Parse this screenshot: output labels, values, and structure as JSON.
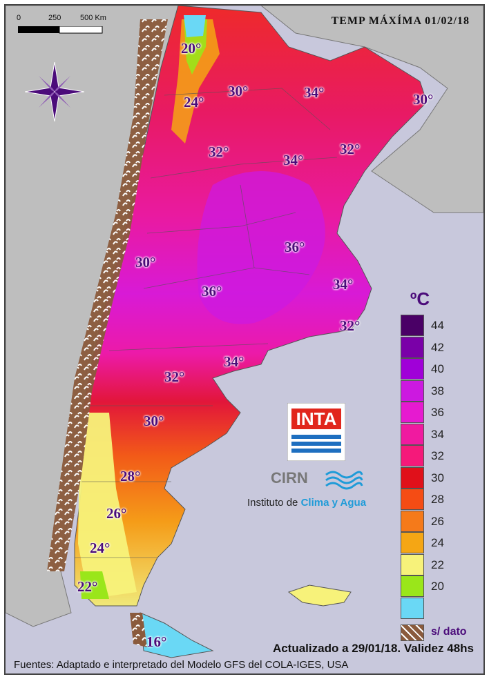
{
  "title": "TEMP MÁXÍMA 01/02/18",
  "scale_bar": {
    "labels": [
      "0",
      "250",
      "500 Km"
    ]
  },
  "compass_icon": "compass-rose-icon",
  "isotherm_labels": [
    {
      "text": "20°"
    },
    {
      "text": "24°"
    },
    {
      "text": "30°"
    },
    {
      "text": "34°"
    },
    {
      "text": "30°"
    },
    {
      "text": "32°"
    },
    {
      "text": "34°"
    },
    {
      "text": "32°"
    },
    {
      "text": "30°"
    },
    {
      "text": "36°"
    },
    {
      "text": "36°"
    },
    {
      "text": "34°"
    },
    {
      "text": "32°"
    },
    {
      "text": "34°"
    },
    {
      "text": "32°"
    },
    {
      "text": "30°"
    },
    {
      "text": "28°"
    },
    {
      "text": "26°"
    },
    {
      "text": "24°"
    },
    {
      "text": "22°"
    },
    {
      "text": "16°"
    }
  ],
  "legend": {
    "unit": "ºC",
    "items": [
      {
        "value": "44",
        "color": "#4a0066"
      },
      {
        "value": "42",
        "color": "#7a00a8"
      },
      {
        "value": "40",
        "color": "#a000d8"
      },
      {
        "value": "38",
        "color": "#cc19e0"
      },
      {
        "value": "36",
        "color": "#e61ad0"
      },
      {
        "value": "34",
        "color": "#f01aa0"
      },
      {
        "value": "32",
        "color": "#f5197a"
      },
      {
        "value": "30",
        "color": "#e0101a"
      },
      {
        "value": "28",
        "color": "#f54c14"
      },
      {
        "value": "26",
        "color": "#f57a1a"
      },
      {
        "value": "24",
        "color": "#f5a614"
      },
      {
        "value": "22",
        "color": "#f7f27a"
      },
      {
        "value": "20",
        "color": "#9ae61a"
      },
      {
        "value": "",
        "color": "#6ad8f5"
      }
    ],
    "no_data_label": "s/ dato",
    "no_data_color": "#8a5a3c"
  },
  "logo": {
    "name": "INTA",
    "subtitle": "CIRN",
    "institute": "Instituto de ",
    "institute_highlight": "Clima y Agua"
  },
  "updated": "Actualizado a 29/01/18. Validez 48hs",
  "sources": "Fuentes: Adaptado e interpretado del Modelo GFS del COLA-IGES, USA"
}
